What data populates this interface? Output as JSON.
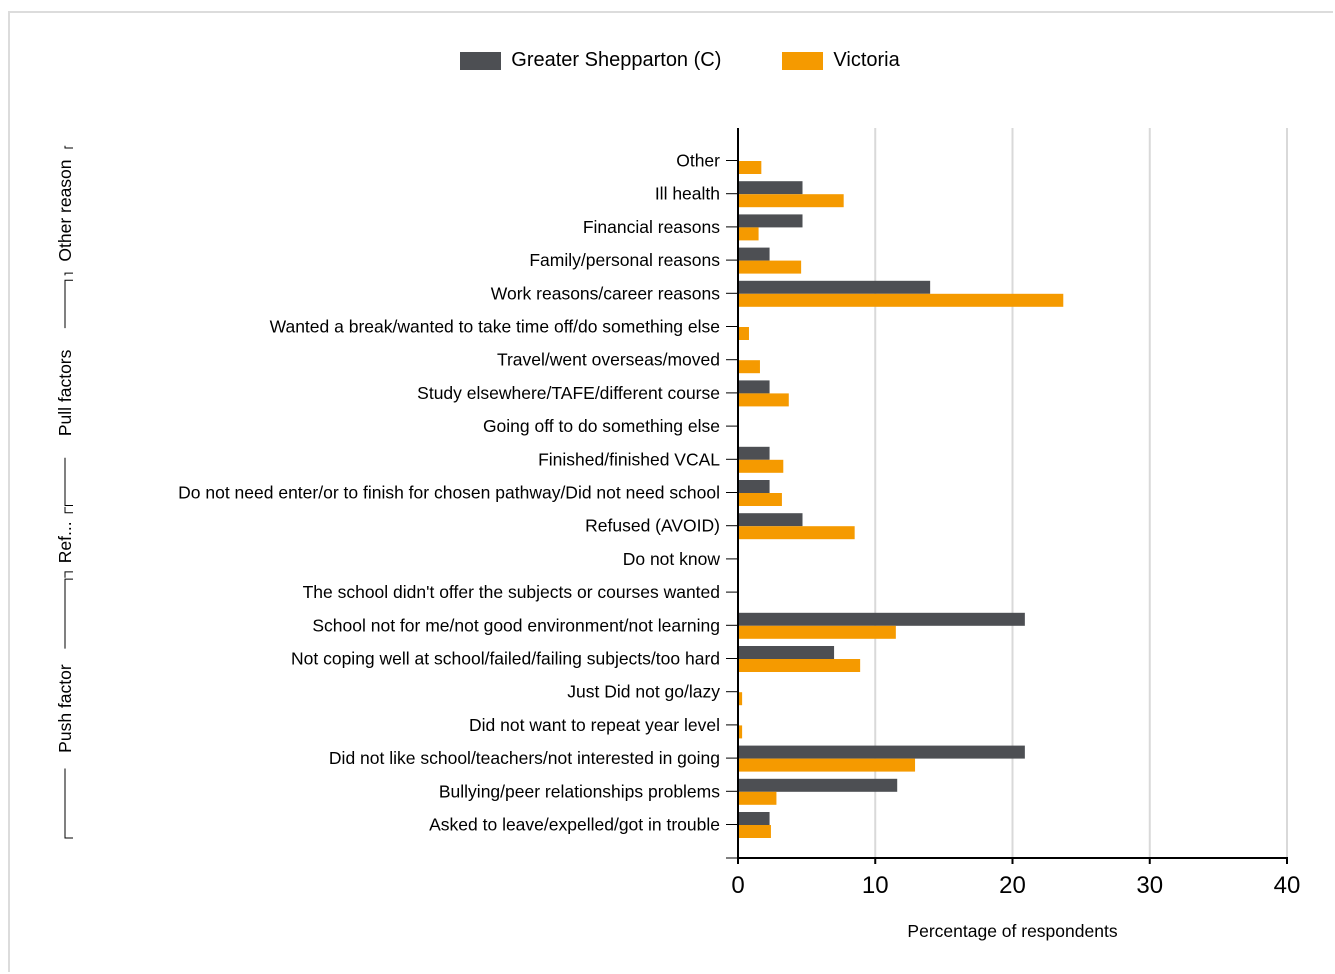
{
  "colors": {
    "greater_shepparton": "#4d4f53",
    "victoria": "#f59a00",
    "axis": "#000000",
    "grid": "#d9d9d9"
  },
  "legend": {
    "greater_shepparton": "Greater Shepparton (C)",
    "victoria": "Victoria"
  },
  "chart_data": {
    "type": "bar",
    "orientation": "horizontal",
    "xlabel": "Percentage of respondents",
    "xlim": [
      0,
      40
    ],
    "xticks": [
      0,
      10,
      20,
      30,
      40
    ],
    "grid": true,
    "legend_position": "top-center",
    "categories": [
      "Other",
      "Ill health",
      "Financial reasons",
      "Family/personal reasons",
      "Work reasons/career reasons",
      "Wanted a break/wanted to take time off/do something else",
      "Travel/went overseas/moved",
      "Study elsewhere/TAFE/different course",
      "Going off to do something else",
      "Finished/finished VCAL",
      "Do not need enter/or to finish for chosen pathway/Did not need school",
      "Refused (AVOID)",
      "Do not know",
      "The school didn't offer the subjects or courses wanted",
      "School not for me/not good environment/not learning",
      "Not coping well at school/failed/failing subjects/too hard",
      "Just Did not go/lazy",
      "Did not want to repeat year level",
      "Did not like school/teachers/not interested in going",
      "Bullying/peer relationships problems",
      "Asked to leave/expelled/got in trouble"
    ],
    "groups": [
      {
        "label": "Other reason",
        "from": 0,
        "to": 3
      },
      {
        "label": "Pull factors",
        "from": 4,
        "to": 10
      },
      {
        "label": "Ref...",
        "from": 11,
        "to": 12
      },
      {
        "label": "Push factor",
        "from": 13,
        "to": 20
      }
    ],
    "series": [
      {
        "name": "Greater Shepparton (C)",
        "values": [
          0,
          4.7,
          4.7,
          2.3,
          14.0,
          0,
          0,
          2.3,
          0,
          2.3,
          2.3,
          4.7,
          0,
          0,
          20.9,
          7.0,
          0,
          0,
          20.9,
          11.6,
          2.3
        ]
      },
      {
        "name": "Victoria",
        "values": [
          1.7,
          7.7,
          1.5,
          4.6,
          23.7,
          0.8,
          1.6,
          3.7,
          0,
          3.3,
          3.2,
          8.5,
          0,
          0,
          11.5,
          8.9,
          0.3,
          0.3,
          12.9,
          2.8,
          2.4
        ]
      }
    ]
  }
}
